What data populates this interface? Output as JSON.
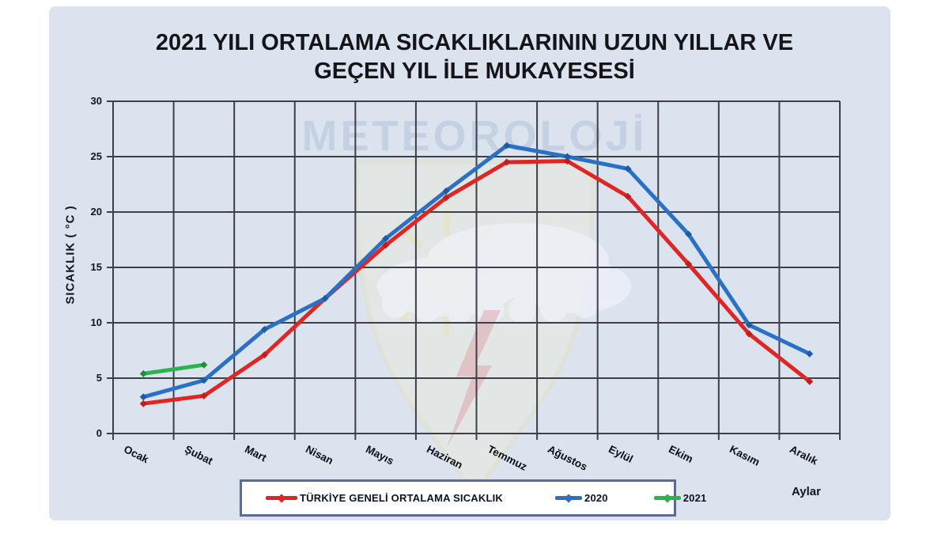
{
  "page": {
    "panel_bg": "#dbe3ef",
    "grid_color": "#3e3e48"
  },
  "title": {
    "line1": "2021 YILI ORTALAMA SICAKLIKLARININ UZUN YILLAR VE",
    "line2": "GEÇEN  YIL İLE MUKAYESESİ"
  },
  "watermark": {
    "text": "METEOROLOJİ"
  },
  "axes": {
    "y_title": "SICAKLIK ( °C )",
    "x_title": "Aylar"
  },
  "legend": {
    "items": [
      {
        "label": "TÜRKİYE GENELİ ORTALAMA SICAKLIK",
        "color": "#e02525"
      },
      {
        "label": "2020",
        "color": "#2a70c4"
      },
      {
        "label": "2021",
        "color": "#2eb24e"
      }
    ]
  },
  "chart_data": {
    "type": "line",
    "title": "2021 YILI ORTALAMA SICAKLIKLARININ UZUN YILLAR VE GEÇEN YIL İLE MUKAYESESİ",
    "categories": [
      "Ocak",
      "Şubat",
      "Mart",
      "Nisan",
      "Mayıs",
      "Haziran",
      "Temmuz",
      "Ağustos",
      "Eylül",
      "Ekim",
      "Kasım",
      "Aralık"
    ],
    "series": [
      {
        "name": "TÜRKİYE GENELİ ORTALAMA SICAKLIK",
        "color": "#e02525",
        "marker_color": "#c01d1d",
        "values": [
          2.7,
          3.4,
          7.1,
          12.2,
          17.0,
          21.3,
          24.5,
          24.6,
          21.4,
          15.3,
          9.0,
          4.7
        ]
      },
      {
        "name": "2020",
        "color": "#2a70c4",
        "marker_color": "#1f5ba5",
        "values": [
          3.3,
          4.8,
          9.4,
          12.2,
          17.6,
          21.9,
          26.0,
          25.0,
          23.9,
          18.0,
          9.8,
          7.2
        ]
      },
      {
        "name": "2021",
        "color": "#2eb24e",
        "marker_color": "#1f8f3c",
        "values": [
          5.4,
          6.2,
          null,
          null,
          null,
          null,
          null,
          null,
          null,
          null,
          null,
          null
        ]
      }
    ],
    "xlabel": "Aylar",
    "ylabel": "SICAKLIK ( °C )",
    "ylim": [
      0,
      30
    ],
    "ytick_step": 5,
    "grid": true,
    "legend_position": "bottom"
  }
}
